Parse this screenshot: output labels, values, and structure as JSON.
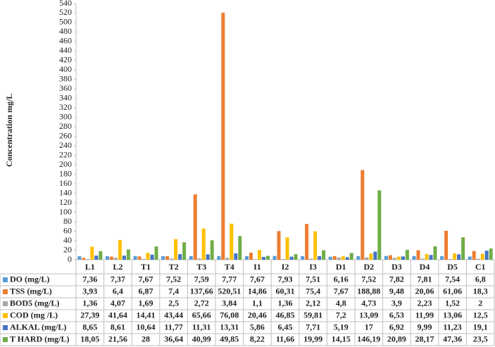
{
  "chart_data": {
    "type": "bar",
    "y_label": "Concentration mg/L",
    "categories": [
      "L1",
      "L2",
      "T1",
      "T2",
      "T3",
      "T4",
      "I1",
      "I2",
      "I3",
      "D1",
      "D2",
      "D3",
      "D4",
      "D5",
      "C1"
    ],
    "ylim": [
      0,
      540
    ],
    "yticks": [
      0,
      20,
      40,
      60,
      80,
      100,
      120,
      140,
      160,
      180,
      200,
      220,
      240,
      260,
      280,
      300,
      320,
      340,
      360,
      380,
      400,
      420,
      440,
      460,
      480,
      500,
      520,
      540
    ],
    "grid": false,
    "series": [
      {
        "name": "DO (mg/L)",
        "color": "#5b9bd5",
        "values": [
          7.36,
          7.37,
          7.67,
          7.52,
          7.59,
          7.77,
          7.67,
          7.93,
          7.51,
          6.16,
          7.52,
          7.82,
          7.81,
          7.54,
          6.8
        ],
        "value_labels": [
          "7,36",
          "7,37",
          "7,67",
          "7,52",
          "7,59",
          "7,77",
          "7,67",
          "7,93",
          "7,51",
          "6,16",
          "7,52",
          "7,82",
          "7,81",
          "7,54",
          "6,8"
        ]
      },
      {
        "name": "TSS (mg/L)",
        "color": "#ed7d31",
        "values": [
          3.93,
          6.4,
          6.87,
          7.4,
          137.66,
          520.51,
          14.86,
          60.31,
          75.4,
          7.67,
          188.88,
          9.48,
          20.06,
          61.06,
          18.3
        ],
        "value_labels": [
          "3,93",
          "6,4",
          "6,87",
          "7,4",
          "137,66",
          "520,51",
          "14,86",
          "60,31",
          "75,4",
          "7,67",
          "188,88",
          "9,48",
          "20,06",
          "61,06",
          "18,3"
        ]
      },
      {
        "name": "BOD5 (mg/L)",
        "color": "#a5a5a5",
        "values": [
          1.36,
          4.07,
          1.69,
          2.5,
          2.72,
          3.84,
          1.1,
          1.36,
          2.12,
          4.8,
          4.73,
          3.9,
          2.23,
          1.52,
          2
        ],
        "value_labels": [
          "1,36",
          "4,07",
          "1,69",
          "2,5",
          "2,72",
          "3,84",
          "1,1",
          "1,36",
          "2,12",
          "4,8",
          "4,73",
          "3,9",
          "2,23",
          "1,52",
          "2"
        ]
      },
      {
        "name": "COD (mg /L)",
        "color": "#ffc000",
        "values": [
          27.39,
          41.64,
          14.41,
          43.44,
          65.66,
          76.08,
          20.46,
          46.85,
          59.81,
          7.2,
          13.09,
          6.53,
          11.99,
          13.06,
          12.5
        ],
        "value_labels": [
          "27,39",
          "41,64",
          "14,41",
          "43,44",
          "65,66",
          "76,08",
          "20,46",
          "46,85",
          "59,81",
          "7,2",
          "13,09",
          "6,53",
          "11,99",
          "13,06",
          "12,5"
        ]
      },
      {
        "name": "ALKAL (mg/L)",
        "color": "#4472c4",
        "values": [
          8.65,
          8.61,
          10.64,
          11.77,
          11.31,
          13.31,
          5.86,
          6.45,
          7.71,
          5.19,
          17,
          6.92,
          9.99,
          11.23,
          19.1
        ],
        "value_labels": [
          "8,65",
          "8,61",
          "10,64",
          "11,77",
          "11,31",
          "13,31",
          "5,86",
          "6,45",
          "7,71",
          "5,19",
          "17",
          "6,92",
          "9,99",
          "11,23",
          "19,1"
        ]
      },
      {
        "name": "T HARD (mg/L)",
        "color": "#70ad47",
        "values": [
          18.05,
          21.56,
          28,
          36.64,
          40.99,
          49.85,
          8.22,
          11.66,
          19.99,
          14.15,
          146.19,
          20.89,
          28.17,
          47.36,
          23.5
        ],
        "value_labels": [
          "18,05",
          "21,56",
          "28",
          "36,64",
          "40,99",
          "49,85",
          "8,22",
          "11,66",
          "19,99",
          "14,15",
          "146,19",
          "20,89",
          "28,17",
          "47,36",
          "23,5"
        ]
      }
    ]
  }
}
